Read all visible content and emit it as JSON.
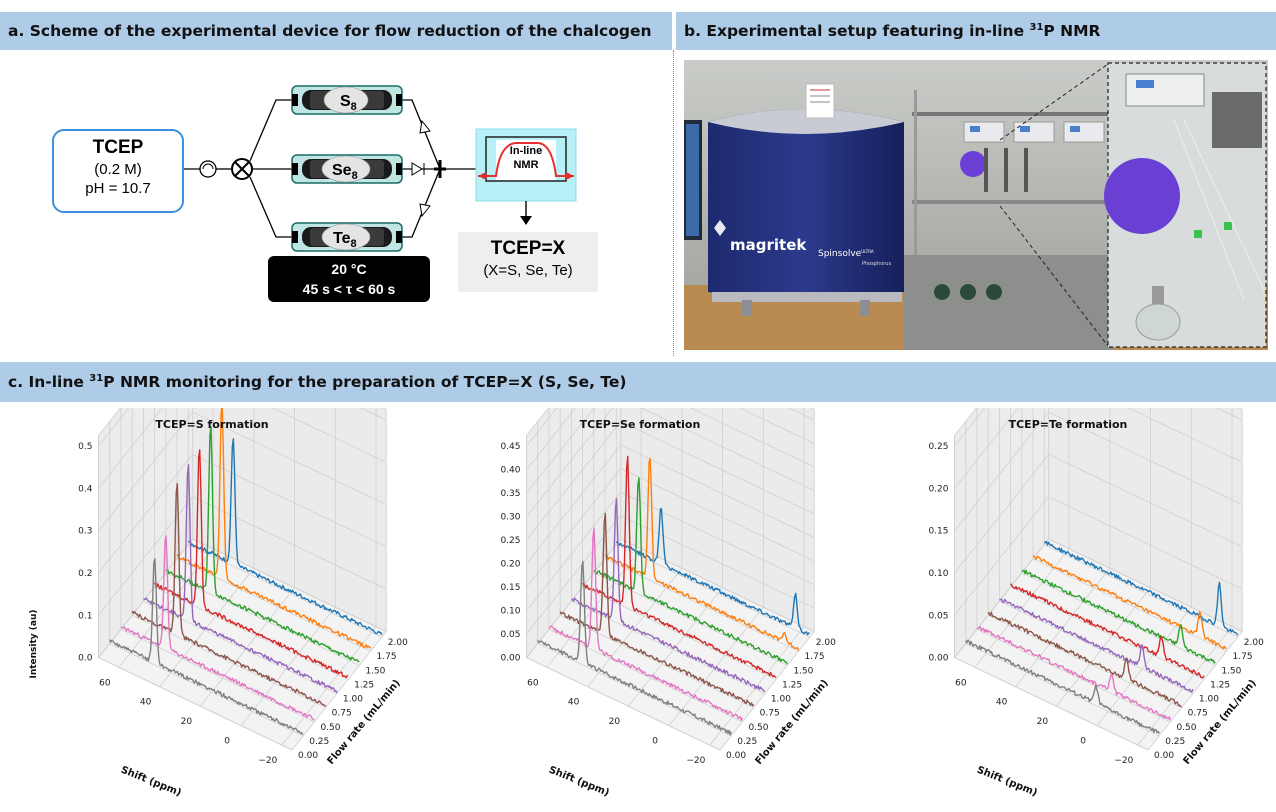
{
  "headers": {
    "a": "a. Scheme of the experimental device for flow reduction of the chalcogen",
    "b_pre": "b. Experimental setup featuring in-line ",
    "b_sup": "31",
    "b_post": "P NMR",
    "c_pre": "c. In-line ",
    "c_sup": "31",
    "c_post": "P NMR monitoring for the preparation of TCEP=X (S, Se, Te)"
  },
  "scheme": {
    "reagent": {
      "name": "TCEP",
      "concentration": "(0.2 M)",
      "ph": "pH = 10.7"
    },
    "columns": [
      {
        "label": "S",
        "sub": "8"
      },
      {
        "label": "Se",
        "sub": "8"
      },
      {
        "label": "Te",
        "sub": "8"
      }
    ],
    "conditions": {
      "temperature": "20 °C",
      "residence": "45 s < τ < 60 s"
    },
    "nmr": {
      "line1": "In-line",
      "line2": "NMR"
    },
    "product": {
      "name": "TCEP=X",
      "detail": "(X=S, Se, Te)"
    }
  },
  "photo": {
    "instrument_brand": "magritek",
    "instrument_model": "Spinsolve",
    "model_sup": "ULTRA",
    "model_sub": "Phosphorus"
  },
  "colors": {
    "header_bg": "#aecbe8",
    "series": [
      "#1f77b4",
      "#ff7f0e",
      "#2ca02c",
      "#d62728",
      "#9467bd",
      "#8c564b",
      "#e377c2",
      "#7f7f7f"
    ]
  },
  "chart_data": [
    {
      "type": "line",
      "title": "TCEP=S formation",
      "xlabel": "Shift (ppm)",
      "ylabel": "Flow rate (mL/min)",
      "zlabel": "Intensity (au)",
      "x_ticks": [
        "60",
        "40",
        "20",
        "0",
        "−20"
      ],
      "y_ticks": [
        "0.00",
        "0.25",
        "0.50",
        "0.75",
        "1.00",
        "1.25",
        "1.50",
        "1.75",
        "2.00"
      ],
      "z_ticks": [
        "0.0",
        "0.1",
        "0.2",
        "0.3",
        "0.4",
        "0.5"
      ],
      "zlim": [
        0,
        0.5
      ],
      "series": [
        {
          "flow_rate": 2.0,
          "peak_shift": 48,
          "peak": 0.3
        },
        {
          "flow_rate": 1.75,
          "peak_shift": 48,
          "peak": 0.42
        },
        {
          "flow_rate": 1.5,
          "peak_shift": 48,
          "peak": 0.4
        },
        {
          "flow_rate": 1.25,
          "peak_shift": 48,
          "peak": 0.38
        },
        {
          "flow_rate": 1.0,
          "peak_shift": 48,
          "peak": 0.37
        },
        {
          "flow_rate": 0.75,
          "peak_shift": 48,
          "peak": 0.36
        },
        {
          "flow_rate": 0.5,
          "peak_shift": 48,
          "peak": 0.27
        },
        {
          "flow_rate": 0.25,
          "peak_shift": 48,
          "peak": 0.25
        }
      ]
    },
    {
      "type": "line",
      "title": "TCEP=Se formation",
      "xlabel": "Shift (ppm)",
      "ylabel": "Flow rate (mL/min)",
      "zlabel": "",
      "x_ticks": [
        "60",
        "40",
        "20",
        "0",
        "−20"
      ],
      "y_ticks": [
        "0.00",
        "0.25",
        "0.50",
        "0.75",
        "1.00",
        "1.25",
        "1.50",
        "1.75",
        "2.00"
      ],
      "z_ticks": [
        "0.00",
        "0.05",
        "0.10",
        "0.15",
        "0.20",
        "0.25",
        "0.30",
        "0.35",
        "0.40",
        "0.45"
      ],
      "zlim": [
        0,
        0.45
      ],
      "series": [
        {
          "flow_rate": 2.0,
          "peak_shift": 48,
          "peak": 0.12,
          "peak2_shift": -18,
          "peak2": 0.07
        },
        {
          "flow_rate": 1.75,
          "peak_shift": 48,
          "peak": 0.26,
          "peak2_shift": -18,
          "peak2": 0.02
        },
        {
          "flow_rate": 1.5,
          "peak_shift": 48,
          "peak": 0.25
        },
        {
          "flow_rate": 1.25,
          "peak_shift": 48,
          "peak": 0.32
        },
        {
          "flow_rate": 1.0,
          "peak_shift": 48,
          "peak": 0.26
        },
        {
          "flow_rate": 0.75,
          "peak_shift": 48,
          "peak": 0.26
        },
        {
          "flow_rate": 0.5,
          "peak_shift": 48,
          "peak": 0.26
        },
        {
          "flow_rate": 0.25,
          "peak_shift": 48,
          "peak": 0.22
        }
      ]
    },
    {
      "type": "line",
      "title": "TCEP=Te formation",
      "xlabel": "Shift (ppm)",
      "ylabel": "Flow rate (mL/min)",
      "zlabel": "",
      "x_ticks": [
        "60",
        "40",
        "20",
        "0",
        "−20"
      ],
      "y_ticks": [
        "0.00",
        "0.25",
        "0.50",
        "0.75",
        "1.00",
        "1.25",
        "1.50",
        "1.75",
        "2.00"
      ],
      "z_ticks": [
        "0.00",
        "0.05",
        "0.10",
        "0.15",
        "0.20",
        "0.25"
      ],
      "zlim": [
        0,
        0.25
      ],
      "series": [
        {
          "flow_rate": 2.0,
          "peak_shift": -16,
          "peak": 0.05
        },
        {
          "flow_rate": 1.75,
          "peak_shift": -12,
          "peak": 0.03
        },
        {
          "flow_rate": 1.5,
          "peak_shift": -8,
          "peak": 0.025
        },
        {
          "flow_rate": 1.25,
          "peak_shift": -4,
          "peak": 0.025
        },
        {
          "flow_rate": 1.0,
          "peak_shift": 0,
          "peak": 0.025
        },
        {
          "flow_rate": 0.75,
          "peak_shift": 2,
          "peak": 0.025
        },
        {
          "flow_rate": 0.5,
          "peak_shift": 4,
          "peak": 0.02
        },
        {
          "flow_rate": 0.25,
          "peak_shift": 6,
          "peak": 0.02
        }
      ]
    }
  ]
}
